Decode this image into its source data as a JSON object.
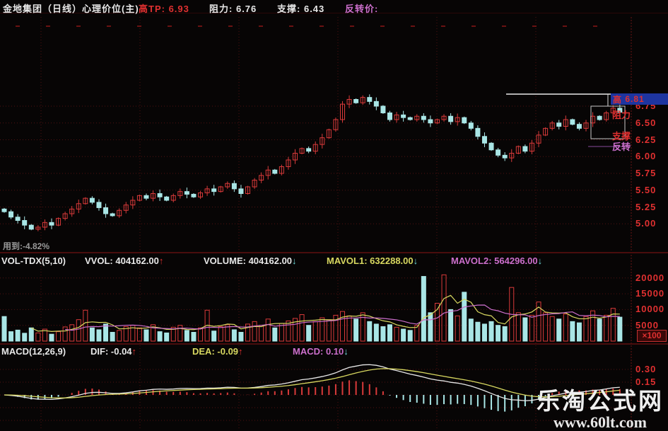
{
  "header": {
    "title": "金地集团（日线）心理价位(主)",
    "high_tp_label": "高TP:",
    "high_tp_value": "6.93",
    "resistance_label": "阻力:",
    "resistance_value": "6.76",
    "support_label": "支撑:",
    "support_value": "6.43",
    "reversal_label": "反转价:"
  },
  "price_panel": {
    "axis_labels": [
      "6.75",
      "6.50",
      "6.25",
      "6.00",
      "5.75",
      "5.50",
      "5.25",
      "5.00"
    ],
    "axis_prices": [
      6.75,
      6.5,
      6.25,
      6.0,
      5.75,
      5.5,
      5.25,
      5.0
    ],
    "highlight_prefix": "高",
    "highlight_price": "6.81",
    "overlay_resistance": "阻力",
    "overlay_support": "支撑",
    "overlay_reversal": "反转",
    "note": "用到:-4.82%"
  },
  "volume_panel": {
    "indicator": "VOL-TDX(5,10)",
    "vvol_label": "VVOL:",
    "vvol_value": "404162.00",
    "vvol_arrow": "↑",
    "volume_label": "VOLUME:",
    "volume_value": "404162.00",
    "volume_arrow": "↓",
    "mavol1_label": "MAVOL1:",
    "mavol1_value": "632288.00",
    "mavol1_arrow": "↓",
    "mavol2_label": "MAVOL2:",
    "mavol2_value": "564296.00",
    "mavol2_arrow": "↓",
    "axis_labels": [
      "20000",
      "15000",
      "10000",
      "5000"
    ],
    "axis_values": [
      20000,
      15000,
      10000,
      5000
    ],
    "unit": "×100"
  },
  "macd_panel": {
    "indicator": "MACD(12,26,9)",
    "dif_label": "DIF:",
    "dif_value": "-0.04",
    "dif_arrow": "↑",
    "dea_label": "DEA:",
    "dea_value": "-0.09",
    "dea_arrow": "↑",
    "macd_label": "MACD:",
    "macd_value": "0.10",
    "macd_arrow": "↓",
    "axis_labels": [
      "0.30",
      "0.15"
    ],
    "axis_values": [
      0.3,
      0.15
    ]
  },
  "watermark": {
    "line1": "乐淘公式网",
    "line2": "www.60lt.com"
  },
  "colors": {
    "up": "#d93a3a",
    "down": "#a9e6e6",
    "grid": "#521111",
    "separator": "#4a0d0d",
    "axis_text": "#e03030",
    "dif_line": "#e8e8e8",
    "dea_line": "#d8d860",
    "mavol1_line": "#d8d860",
    "mavol2_line": "#cc6fcc",
    "tp_line": "#b0b0b0",
    "bracket": "#c8c8c8",
    "reversal_line": "#8a4a9a",
    "highlight_bg": "#1e35a0"
  },
  "chart_data": [
    {
      "type": "candlestick",
      "name": "price-daily",
      "title": "金地集团 日线",
      "ylim": [
        4.6,
        8.1
      ],
      "levels": {
        "high_tp": 6.93,
        "resistance": 6.76,
        "support": 6.43,
        "reversal": 6.81
      },
      "closes": [
        5.18,
        5.1,
        5.05,
        4.98,
        4.92,
        4.95,
        5.02,
        4.98,
        5.08,
        5.15,
        5.22,
        5.3,
        5.38,
        5.32,
        5.24,
        5.15,
        5.12,
        5.2,
        5.28,
        5.35,
        5.42,
        5.38,
        5.45,
        5.4,
        5.35,
        5.42,
        5.48,
        5.44,
        5.4,
        5.46,
        5.52,
        5.48,
        5.55,
        5.6,
        5.52,
        5.45,
        5.55,
        5.65,
        5.72,
        5.8,
        5.75,
        5.85,
        5.95,
        6.05,
        6.12,
        6.08,
        6.18,
        6.28,
        6.4,
        6.55,
        6.78,
        6.85,
        6.8,
        6.88,
        6.82,
        6.75,
        6.65,
        6.55,
        6.62,
        6.58,
        6.55,
        6.6,
        6.55,
        6.5,
        6.55,
        6.6,
        6.52,
        6.58,
        6.5,
        6.42,
        6.3,
        6.2,
        6.1,
        6.02,
        5.98,
        6.05,
        6.15,
        6.08,
        6.2,
        6.32,
        6.42,
        6.5,
        6.45,
        6.55,
        6.48,
        6.42,
        6.5,
        6.6,
        6.55,
        6.65,
        6.72,
        6.66
      ]
    },
    {
      "type": "bar",
      "name": "volume",
      "unit": "×100",
      "ylim": [
        0,
        22000
      ],
      "ma_periods": [
        5,
        10
      ],
      "values": [
        7800,
        3000,
        3500,
        2500,
        4200,
        2600,
        3800,
        2200,
        3000,
        4500,
        5200,
        6800,
        9800,
        4200,
        3600,
        5400,
        2800,
        3400,
        4600,
        5000,
        4200,
        3600,
        5200,
        3000,
        2600,
        4400,
        5000,
        3400,
        2800,
        4200,
        9800,
        3200,
        4600,
        5200,
        3600,
        2800,
        5400,
        6200,
        5000,
        7000,
        4200,
        5600,
        6400,
        7200,
        8400,
        5000,
        6200,
        7400,
        6800,
        8200,
        9400,
        8000,
        7000,
        9000,
        6200,
        5400,
        4600,
        5200,
        4400,
        3800,
        3400,
        5000,
        20500,
        9000,
        12000,
        21000,
        10000,
        8000,
        15500,
        7000,
        6000,
        5400,
        6200,
        5000,
        4600,
        17000,
        9000,
        7400,
        8200,
        12400,
        9000,
        7800,
        7000,
        8600,
        6200,
        5800,
        7800,
        9600,
        7000,
        8200,
        10400,
        7600
      ]
    },
    {
      "type": "macd",
      "name": "macd",
      "params": [
        12,
        26,
        9
      ],
      "last": {
        "dif": -0.04,
        "dea": -0.09,
        "macd": 0.1
      },
      "ylim": [
        -0.36,
        0.36
      ]
    }
  ]
}
